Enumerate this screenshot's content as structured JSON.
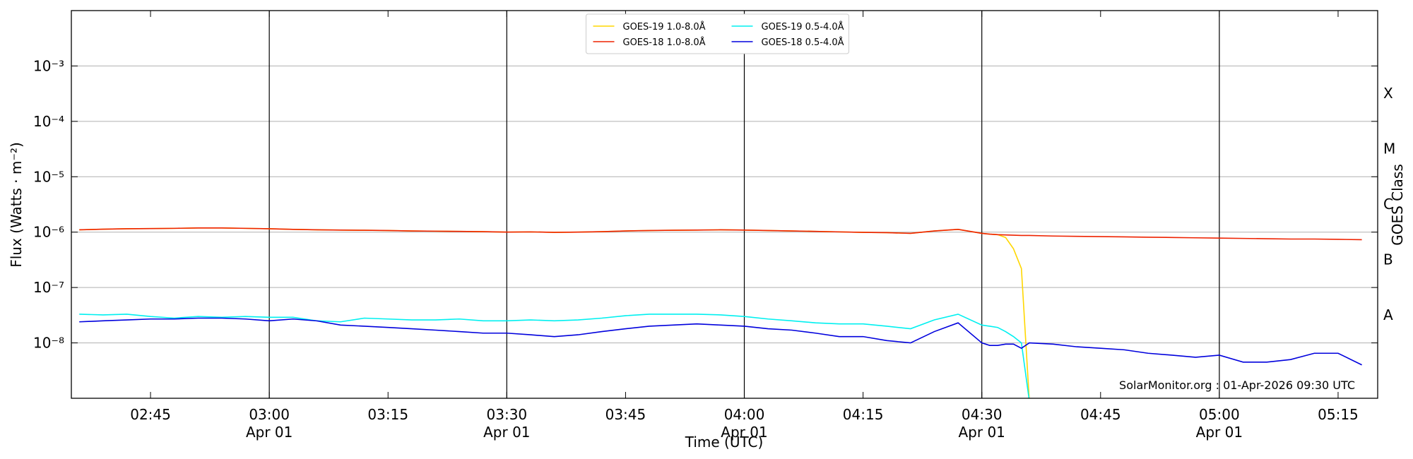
{
  "chart_data": {
    "type": "line",
    "ylabel": "Flux (Watts · m⁻²)",
    "xlabel": "Time (UTC)",
    "y2label": "GOES Class",
    "annotation": "SolarMonitor.org : 01-Apr-2026 09:30 UTC",
    "log_y": true,
    "grid": true,
    "legend_loc": "upper center",
    "xlim": [
      "02:35",
      "05:20"
    ],
    "xticks": [
      "02:45",
      "03:00",
      "03:15",
      "03:30",
      "03:45",
      "04:00",
      "04:15",
      "04:30",
      "04:45",
      "05:00",
      "05:15"
    ],
    "xticks_major": [
      "03:00",
      "03:30",
      "04:00",
      "04:30",
      "05:00"
    ],
    "xtick_date": "Apr 01",
    "ylim": [
      1e-09,
      0.01
    ],
    "yticks": [
      {
        "value": 1e-08,
        "label": "10⁻⁸"
      },
      {
        "value": 1e-07,
        "label": "10⁻⁷"
      },
      {
        "value": 1e-06,
        "label": "10⁻⁶"
      },
      {
        "value": 1e-05,
        "label": "10⁻⁵"
      },
      {
        "value": 0.0001,
        "label": "10⁻⁴"
      },
      {
        "value": 0.001,
        "label": "10⁻³"
      }
    ],
    "y2lim": [
      1e-09,
      0.01
    ],
    "y2ticks": [
      {
        "value": 3.2e-08,
        "label": "A"
      },
      {
        "value": 3.2e-07,
        "label": "B"
      },
      {
        "value": 3.2e-06,
        "label": "C"
      },
      {
        "value": 3.2e-05,
        "label": "M"
      },
      {
        "value": 0.00032,
        "label": "X"
      }
    ],
    "x": [
      "02:36",
      "02:39",
      "02:42",
      "02:45",
      "02:48",
      "02:51",
      "02:54",
      "02:57",
      "03:00",
      "03:03",
      "03:06",
      "03:09",
      "03:12",
      "03:15",
      "03:18",
      "03:21",
      "03:24",
      "03:27",
      "03:30",
      "03:33",
      "03:36",
      "03:39",
      "03:42",
      "03:45",
      "03:48",
      "03:51",
      "03:54",
      "03:57",
      "04:00",
      "04:03",
      "04:06",
      "04:09",
      "04:12",
      "04:15",
      "04:18",
      "04:21",
      "04:24",
      "04:27",
      "04:30",
      "04:31",
      "04:32",
      "04:33",
      "04:34",
      "04:35",
      "04:36",
      "04:39",
      "04:42",
      "04:45",
      "04:48",
      "04:51",
      "04:54",
      "04:57",
      "05:00",
      "05:03",
      "05:06",
      "05:09",
      "05:12",
      "05:15",
      "05:18"
    ],
    "series": [
      {
        "name": "GOES-19 1.0-8.0Å",
        "color": "#ffd700",
        "values": [
          1.1e-06,
          1.13e-06,
          1.15e-06,
          1.16e-06,
          1.17e-06,
          1.19e-06,
          1.19e-06,
          1.17e-06,
          1.15e-06,
          1.12e-06,
          1.1e-06,
          1.09e-06,
          1.08e-06,
          1.07e-06,
          1.05e-06,
          1.04e-06,
          1.03e-06,
          1.02e-06,
          1e-06,
          1.01e-06,
          9.9e-07,
          1e-06,
          1.02e-06,
          1.05e-06,
          1.07e-06,
          1.08e-06,
          1.09e-06,
          1.1e-06,
          1.09e-06,
          1.07e-06,
          1.05e-06,
          1.03e-06,
          1.01e-06,
          9.9e-07,
          9.8e-07,
          9.5e-07,
          1.05e-06,
          1.12e-06,
          9.5e-07,
          9.2e-07,
          9e-07,
          8e-07,
          5e-07,
          2.2e-07,
          9e-10,
          null,
          null,
          null,
          null,
          null,
          null,
          null,
          null,
          null,
          null,
          null,
          null,
          null,
          null
        ]
      },
      {
        "name": "GOES-18 1.0-8.0Å",
        "color": "#ee2200",
        "values": [
          1.1e-06,
          1.13e-06,
          1.15e-06,
          1.16e-06,
          1.17e-06,
          1.19e-06,
          1.19e-06,
          1.17e-06,
          1.15e-06,
          1.12e-06,
          1.1e-06,
          1.09e-06,
          1.08e-06,
          1.07e-06,
          1.05e-06,
          1.04e-06,
          1.03e-06,
          1.02e-06,
          1e-06,
          1.01e-06,
          9.9e-07,
          1e-06,
          1.02e-06,
          1.05e-06,
          1.07e-06,
          1.08e-06,
          1.09e-06,
          1.1e-06,
          1.09e-06,
          1.07e-06,
          1.05e-06,
          1.03e-06,
          1.01e-06,
          9.9e-07,
          9.8e-07,
          9.5e-07,
          1.05e-06,
          1.12e-06,
          9.5e-07,
          9.2e-07,
          9e-07,
          8.9e-07,
          8.8e-07,
          8.7e-07,
          8.7e-07,
          8.5e-07,
          8.4e-07,
          8.3e-07,
          8.2e-07,
          8.1e-07,
          8e-07,
          7.9e-07,
          7.8e-07,
          7.7e-07,
          7.6e-07,
          7.5e-07,
          7.5e-07,
          7.4e-07,
          7.3e-07
        ]
      },
      {
        "name": "GOES-19 0.5-4.0Å",
        "color": "#00f0f0",
        "values": [
          3.3e-08,
          3.2e-08,
          3.3e-08,
          3e-08,
          2.8e-08,
          3e-08,
          2.9e-08,
          3e-08,
          2.9e-08,
          2.9e-08,
          2.5e-08,
          2.4e-08,
          2.8e-08,
          2.7e-08,
          2.6e-08,
          2.6e-08,
          2.7e-08,
          2.5e-08,
          2.5e-08,
          2.6e-08,
          2.5e-08,
          2.6e-08,
          2.8e-08,
          3.1e-08,
          3.3e-08,
          3.3e-08,
          3.3e-08,
          3.2e-08,
          3e-08,
          2.7e-08,
          2.5e-08,
          2.3e-08,
          2.2e-08,
          2.2e-08,
          2e-08,
          1.8e-08,
          2.6e-08,
          3.3e-08,
          2.1e-08,
          2e-08,
          1.9e-08,
          1.6e-08,
          1.3e-08,
          1e-08,
          9e-10,
          null,
          null,
          null,
          null,
          null,
          null,
          null,
          null,
          null,
          null,
          null,
          null,
          null,
          null
        ]
      },
      {
        "name": "GOES-18 0.5-4.0Å",
        "color": "#0000dd",
        "values": [
          2.4e-08,
          2.5e-08,
          2.6e-08,
          2.7e-08,
          2.7e-08,
          2.8e-08,
          2.8e-08,
          2.7e-08,
          2.5e-08,
          2.7e-08,
          2.5e-08,
          2.1e-08,
          2e-08,
          1.9e-08,
          1.8e-08,
          1.7e-08,
          1.6e-08,
          1.5e-08,
          1.5e-08,
          1.4e-08,
          1.3e-08,
          1.4e-08,
          1.6e-08,
          1.8e-08,
          2e-08,
          2.1e-08,
          2.2e-08,
          2.1e-08,
          2e-08,
          1.8e-08,
          1.7e-08,
          1.5e-08,
          1.3e-08,
          1.3e-08,
          1.1e-08,
          1e-08,
          1.6e-08,
          2.3e-08,
          1e-08,
          9e-09,
          9e-09,
          9.5e-09,
          9.5e-09,
          8e-09,
          1e-08,
          9.5e-09,
          8.5e-09,
          8e-09,
          7.5e-09,
          6.5e-09,
          6e-09,
          5.5e-09,
          6e-09,
          4.5e-09,
          4.5e-09,
          5e-09,
          6.5e-09,
          6.5e-09,
          4e-09
        ]
      }
    ]
  }
}
